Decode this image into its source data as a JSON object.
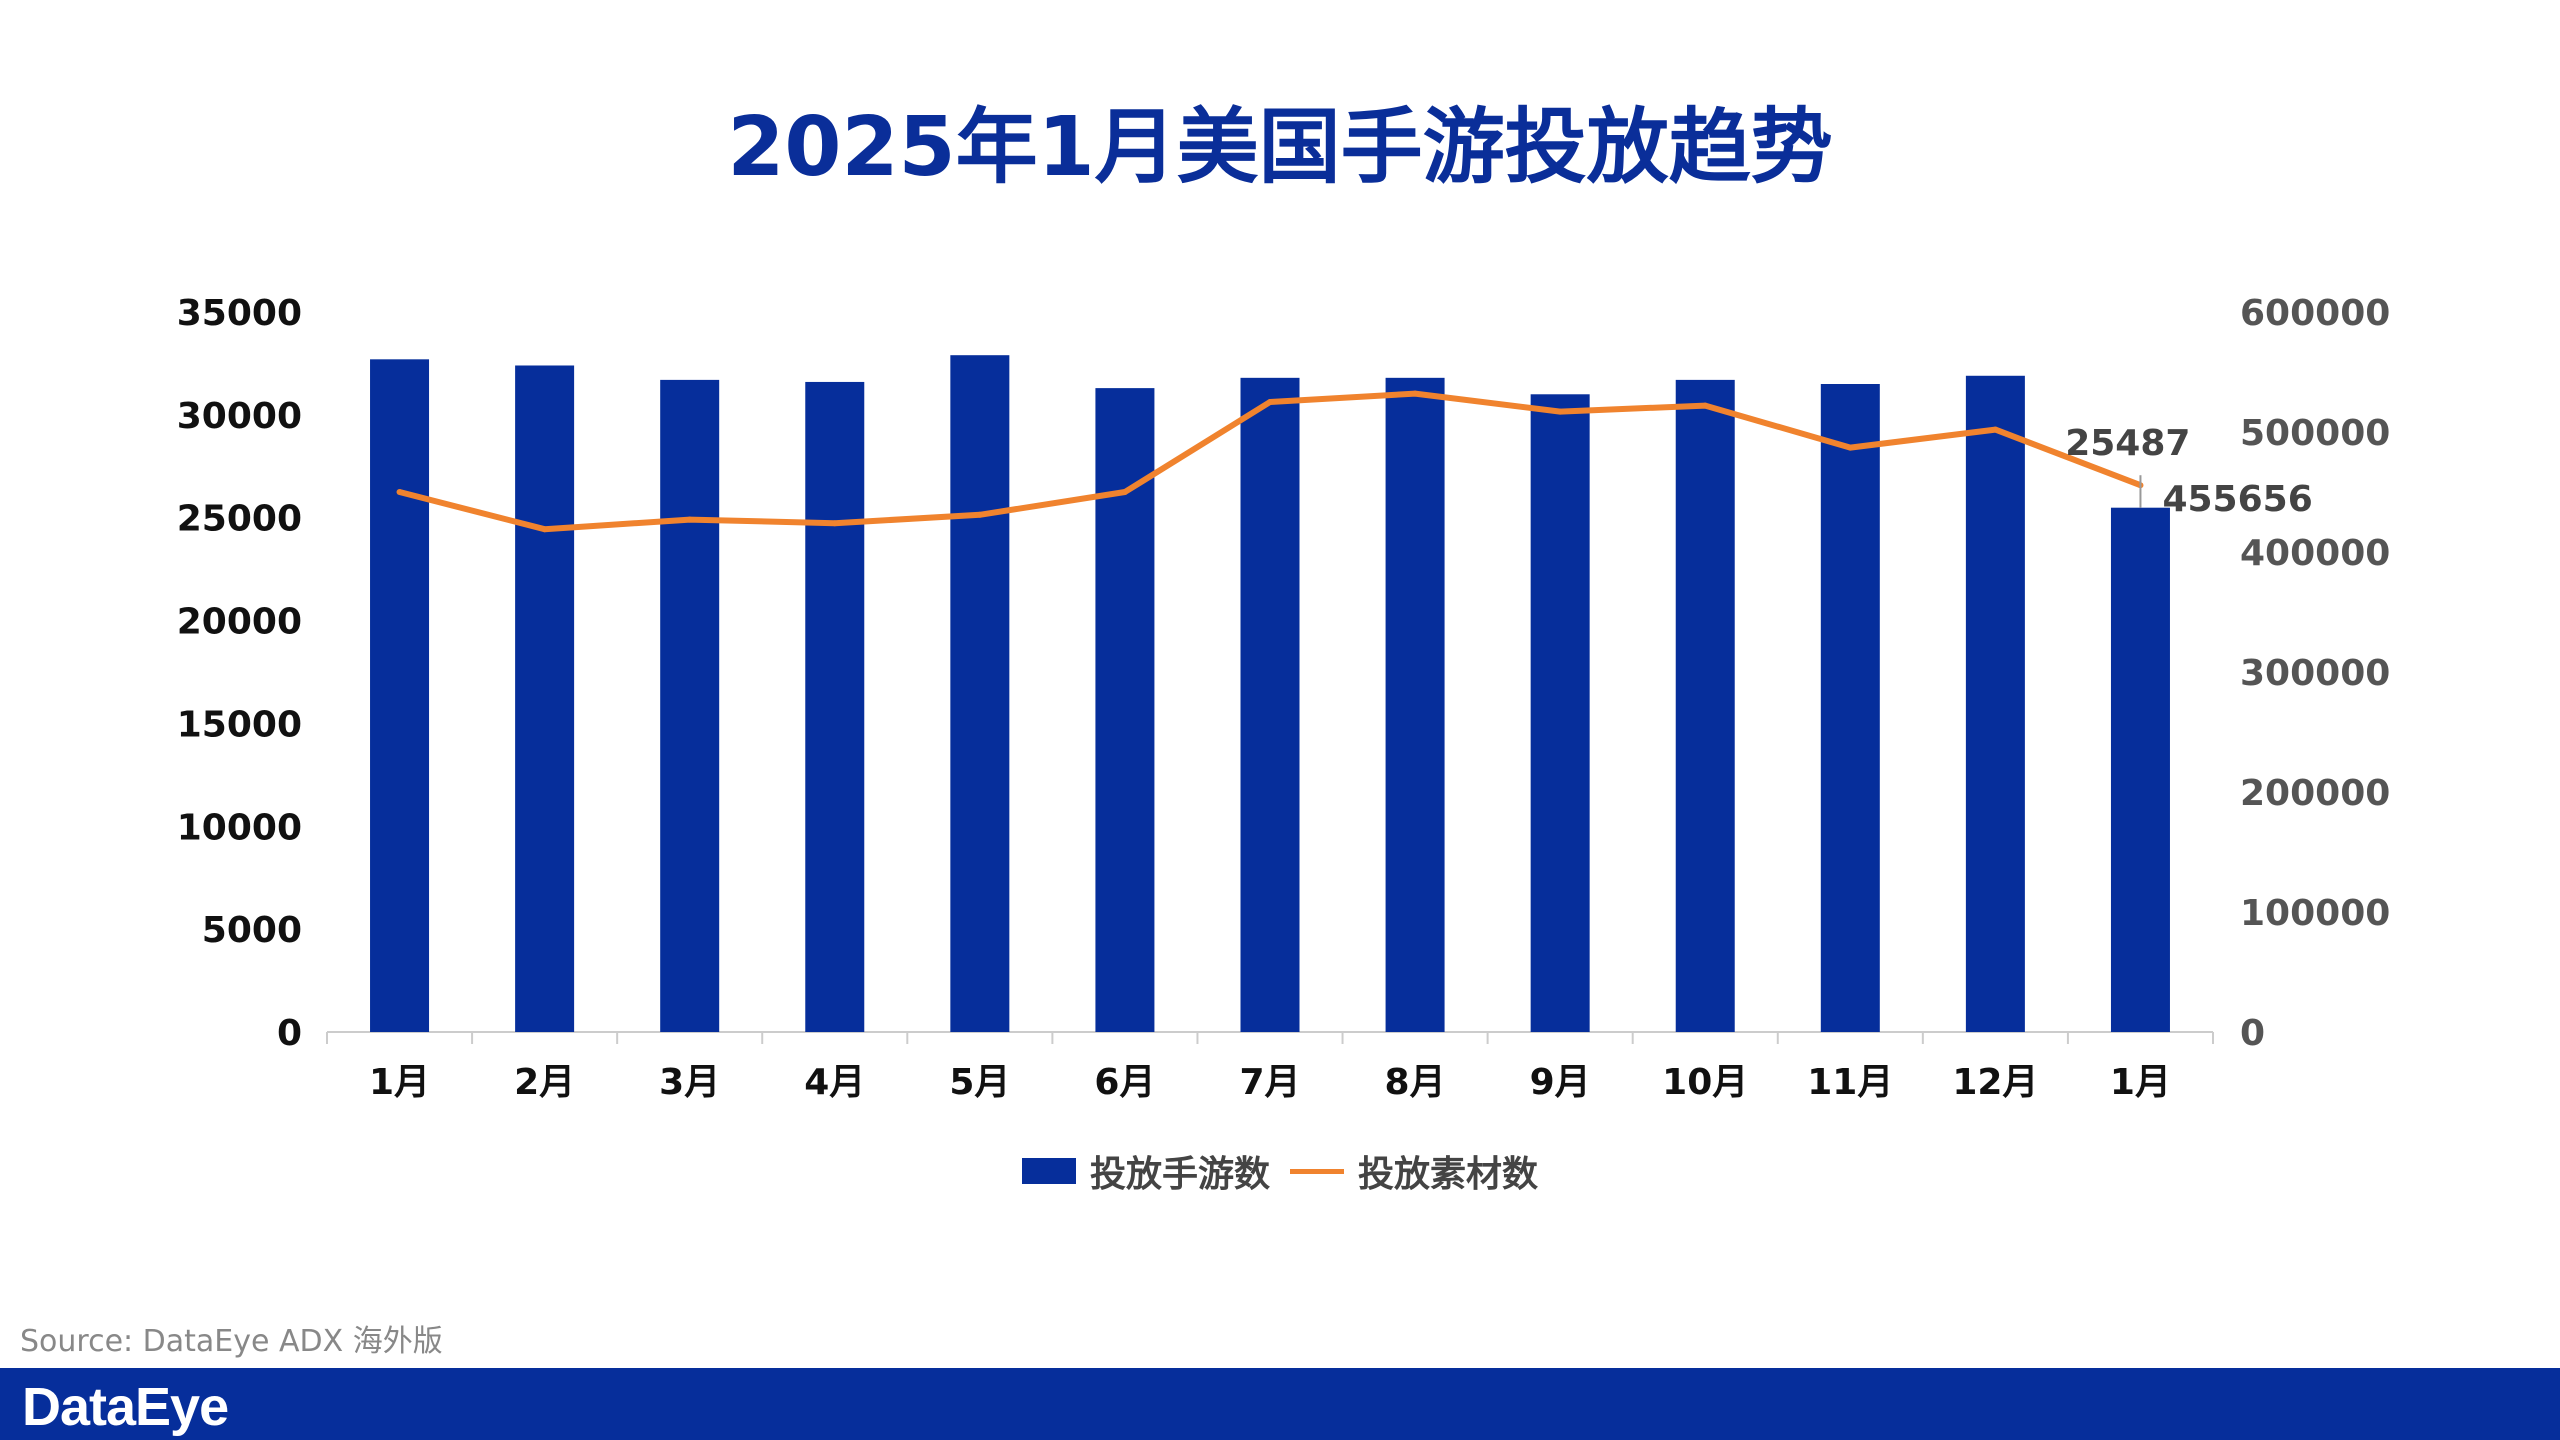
{
  "title": "2025年1月美国手游投放趋势",
  "watermark": "DataEye",
  "source": "Source: DataEye ADX 海外版",
  "footer_logo": "DataEye",
  "colors": {
    "bar": "#062e9b",
    "line": "#f0832e",
    "title": "#0a2e99",
    "footer": "#062e9b"
  },
  "chart_data": {
    "type": "bar+line",
    "title": "2025年1月美国手游投放趋势",
    "categories": [
      "1月",
      "2月",
      "3月",
      "4月",
      "5月",
      "6月",
      "7月",
      "8月",
      "9月",
      "10月",
      "11月",
      "12月",
      "1月"
    ],
    "series": [
      {
        "name": "投放手游数",
        "type": "bar",
        "axis": "left",
        "values": [
          32700,
          32400,
          31700,
          31600,
          32900,
          31300,
          31800,
          31800,
          31000,
          31700,
          31500,
          31900,
          25487
        ]
      },
      {
        "name": "投放素材数",
        "type": "line",
        "axis": "right",
        "values": [
          450000,
          419000,
          427000,
          424000,
          431000,
          450000,
          525000,
          532000,
          517000,
          522000,
          487000,
          502000,
          455656
        ]
      }
    ],
    "y_left": {
      "range": [
        0,
        35000
      ],
      "ticks": [
        "0",
        "5000",
        "10000",
        "15000",
        "20000",
        "25000",
        "30000",
        "35000"
      ]
    },
    "y_right": {
      "range": [
        0,
        600000
      ],
      "ticks": [
        "0",
        "100000",
        "200000",
        "300000",
        "400000",
        "500000",
        "600000"
      ]
    },
    "data_labels": [
      "25487",
      "455656"
    ],
    "grid": false,
    "legend": "bottom"
  }
}
